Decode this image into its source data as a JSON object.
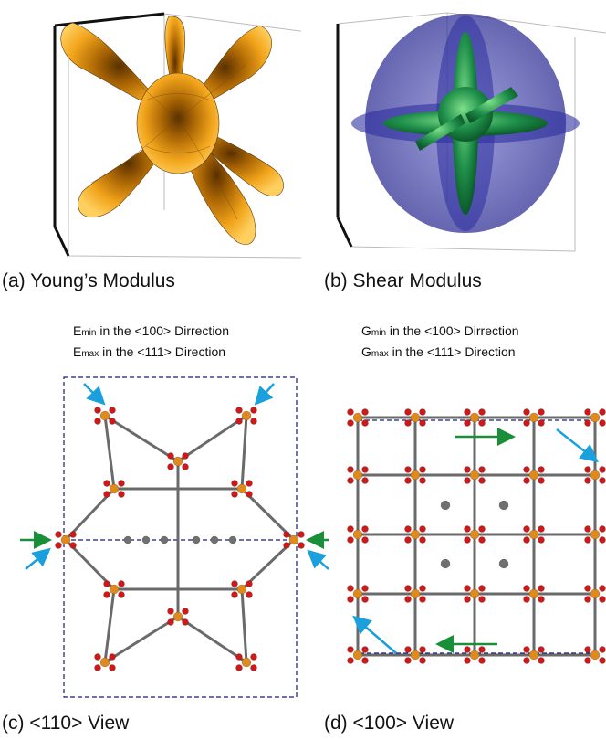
{
  "figure": {
    "panel_a": {
      "caption": "(a) Young’s Modulus"
    },
    "panel_b": {
      "caption": "(b) Shear Modulus"
    },
    "panel_c": {
      "caption": "(c) <110> View",
      "note_min_letter": "E",
      "note_min_sub": "min",
      "note_min_text": " in the <100> Dirrection",
      "note_max_letter": "E",
      "note_max_sub": "max",
      "note_max_text": " in the <111> Direction"
    },
    "panel_d": {
      "caption": "(d) <100> View",
      "note_min_letter": "G",
      "note_min_sub": "min",
      "note_min_text": " in the <100> Dirrection",
      "note_max_letter": "G",
      "note_max_sub": "max",
      "note_max_text": " in the <111> Direction"
    }
  },
  "colors": {
    "young_surface": "#f0a010",
    "shear_outer": "#3a3aa8",
    "shear_inner": "#1f8f4a",
    "arrow_min": "#1aa0dc",
    "arrow_max": "#1a8f3a",
    "atom_metal": "#e08a1e",
    "atom_oxygen": "#cc1a1a",
    "atom_carbon": "#707070",
    "cell_border": "#1a1a7a"
  }
}
